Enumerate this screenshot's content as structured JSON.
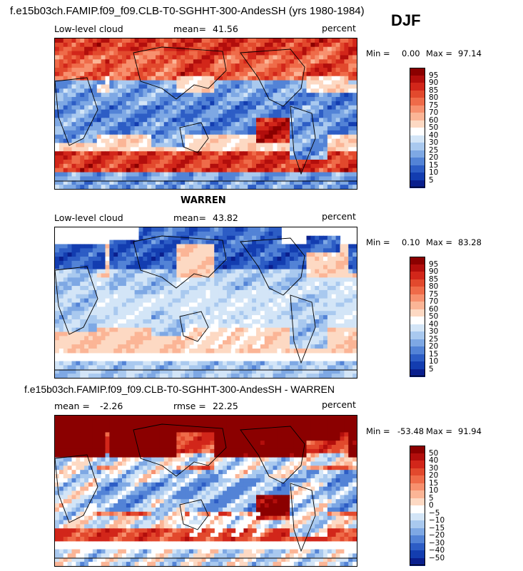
{
  "figure": {
    "title": "f.e15b03ch.FAMIP.f09_f09.CLB-T0-SGHHT-300-AndesSH (yrs 1980-1984)",
    "season": "DJF"
  },
  "chart_data": [
    {
      "type": "heatmap",
      "name": "model",
      "left_label": "Low-level cloud",
      "stat_label": "mean=",
      "stat_value": "41.56",
      "units": "percent",
      "min_label": "Min =",
      "min_value": "0.00",
      "max_label": "Max =",
      "max_value": "97.14",
      "colorbar_levels": [
        "95",
        "90",
        "85",
        "80",
        "75",
        "70",
        "60",
        "50",
        "40",
        "30",
        "25",
        "20",
        "15",
        "10",
        "5"
      ],
      "colorbar_colors": [
        "#8b0000",
        "#b20e0c",
        "#d2261a",
        "#e2492d",
        "#ef6b49",
        "#f7906e",
        "#fbb596",
        "#fdd9c3",
        "#ffffff",
        "#d3e5f7",
        "#a9c9ef",
        "#7ea8e4",
        "#5383d6",
        "#2d5dc5",
        "#133db0",
        "#0a1f8e"
      ],
      "field": "model_low_cloud"
    },
    {
      "type": "heatmap",
      "name": "obs",
      "center_title": "WARREN",
      "left_label": "Low-level cloud",
      "stat_label": "mean=",
      "stat_value": "43.82",
      "units": "percent",
      "min_label": "Min =",
      "min_value": "0.10",
      "max_label": "Max =",
      "max_value": "83.28",
      "colorbar_levels": [
        "95",
        "90",
        "85",
        "80",
        "75",
        "70",
        "60",
        "50",
        "40",
        "30",
        "25",
        "20",
        "15",
        "10",
        "5"
      ],
      "colorbar_colors": [
        "#8b0000",
        "#b20e0c",
        "#d2261a",
        "#e2492d",
        "#ef6b49",
        "#f7906e",
        "#fbb596",
        "#fdd9c3",
        "#ffffff",
        "#d3e5f7",
        "#a9c9ef",
        "#7ea8e4",
        "#5383d6",
        "#2d5dc5",
        "#133db0",
        "#0a1f8e"
      ],
      "field": "obs_low_cloud"
    },
    {
      "type": "heatmap",
      "name": "difference",
      "center_title": "f.e15b03ch.FAMIP.f09_f09.CLB-T0-SGHHT-300-AndesSH - WARREN",
      "left_label": "mean =",
      "left_value": "-2.26",
      "stat_label": "rmse =",
      "stat_value": "22.25",
      "units": "percent",
      "min_label": "Min =",
      "min_value": "-53.48",
      "max_label": "Max =",
      "max_value": "91.94",
      "colorbar_levels": [
        "50",
        "40",
        "30",
        "20",
        "15",
        "10",
        "5",
        "0",
        "−5",
        "−10",
        "−15",
        "−20",
        "−30",
        "−40",
        "−50"
      ],
      "colorbar_colors": [
        "#8b0000",
        "#b20e0c",
        "#d2261a",
        "#e2492d",
        "#ef6b49",
        "#f7906e",
        "#fbb596",
        "#fdd9c3",
        "#ffffff",
        "#d3e5f7",
        "#a9c9ef",
        "#7ea8e4",
        "#5383d6",
        "#2d5dc5",
        "#133db0",
        "#0a1f8e"
      ],
      "field": "difference"
    }
  ]
}
